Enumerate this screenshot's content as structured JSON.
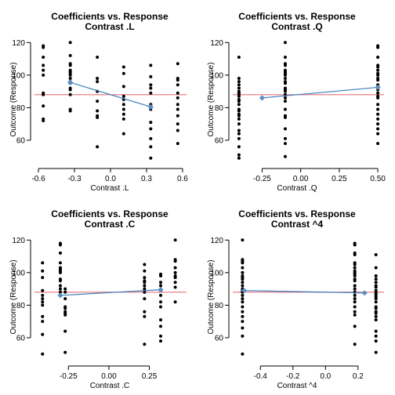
{
  "colors": {
    "points": "#000000",
    "reference_line": "#e8737a",
    "fit_line": "#3b7dbd",
    "fit_markers": "#5b8fc4"
  },
  "chart_data": [
    {
      "type": "scatter",
      "title": "Coefficients vs. Response",
      "subtitle": "Contrast .L",
      "xlabel": "Contrast .L",
      "ylabel": "Outcome (Response)",
      "xlim": [
        -0.62,
        0.62
      ],
      "ylim": [
        46,
        124
      ],
      "xticks": [
        -0.6,
        -0.3,
        0.0,
        0.3,
        0.6
      ],
      "xtick_labels": [
        "-0.6",
        "-0.3",
        "0.0",
        "0.3",
        "0.6"
      ],
      "yticks": [
        60,
        80,
        100,
        120
      ],
      "ytick_labels": [
        "60",
        "80",
        "100",
        "120"
      ],
      "reference_y": 88,
      "fit_line": {
        "x": [
          -0.335,
          0.335
        ],
        "y": [
          95.5,
          80.5
        ]
      },
      "points": {
        "x": [
          -0.56,
          -0.56,
          -0.56,
          -0.56,
          -0.56,
          -0.56,
          -0.56,
          -0.56,
          -0.56,
          -0.56,
          -0.56,
          -0.335,
          -0.335,
          -0.335,
          -0.335,
          -0.335,
          -0.335,
          -0.335,
          -0.335,
          -0.335,
          -0.335,
          -0.335,
          -0.335,
          -0.335,
          -0.335,
          -0.335,
          -0.335,
          -0.11,
          -0.11,
          -0.11,
          -0.11,
          -0.11,
          -0.11,
          -0.11,
          -0.11,
          -0.11,
          0.11,
          0.11,
          0.11,
          0.11,
          0.11,
          0.11,
          0.11,
          0.11,
          0.11,
          0.11,
          0.335,
          0.335,
          0.335,
          0.335,
          0.335,
          0.335,
          0.335,
          0.335,
          0.335,
          0.335,
          0.335,
          0.335,
          0.56,
          0.56,
          0.56,
          0.56,
          0.56,
          0.56,
          0.56,
          0.56,
          0.56,
          0.56,
          0.56,
          0.56
        ],
        "y": [
          118,
          117,
          111,
          106,
          103,
          100,
          89,
          88,
          81,
          73,
          72,
          120,
          112,
          107,
          106,
          103,
          102,
          101,
          100,
          98,
          96,
          95,
          92,
          91,
          88,
          79,
          78,
          111,
          98,
          96,
          90,
          84,
          78,
          75,
          74,
          56,
          105,
          101,
          93,
          87,
          85,
          82,
          79,
          76,
          73,
          64,
          106,
          99,
          94,
          92,
          89,
          82,
          79,
          71,
          67,
          61,
          56,
          49,
          107,
          98,
          97,
          94,
          89,
          86,
          82,
          79,
          75,
          70,
          66,
          58
        ]
      }
    },
    {
      "type": "scatter",
      "title": "Coefficients vs. Response",
      "subtitle": "Contrast .Q",
      "xlabel": "Contrast .Q",
      "ylabel": "Outcome (Response)",
      "xlim": [
        -0.43,
        0.53
      ],
      "ylim": [
        46,
        124
      ],
      "xticks": [
        -0.25,
        0.0,
        0.25,
        0.5
      ],
      "xtick_labels": [
        "-0.25",
        "0.00",
        "0.25",
        "0.50"
      ],
      "yticks": [
        60,
        80,
        100,
        120
      ],
      "ytick_labels": [
        "60",
        "80",
        "100",
        "120"
      ],
      "reference_y": 88,
      "fit_line": {
        "x": [
          -0.25,
          0.5
        ],
        "y": [
          86,
          92.5
        ]
      },
      "points": {
        "x": [
          -0.4,
          -0.4,
          -0.4,
          -0.4,
          -0.4,
          -0.4,
          -0.4,
          -0.4,
          -0.4,
          -0.4,
          -0.4,
          -0.4,
          -0.4,
          -0.4,
          -0.4,
          -0.4,
          -0.4,
          -0.4,
          -0.4,
          -0.4,
          -0.4,
          -0.4,
          -0.4,
          -0.4,
          -0.1,
          -0.1,
          -0.1,
          -0.1,
          -0.1,
          -0.1,
          -0.1,
          -0.1,
          -0.1,
          -0.1,
          -0.1,
          -0.1,
          -0.1,
          -0.1,
          -0.1,
          -0.1,
          -0.1,
          -0.1,
          -0.1,
          -0.1,
          -0.1,
          -0.1,
          -0.1,
          -0.1,
          0.5,
          0.5,
          0.5,
          0.5,
          0.5,
          0.5,
          0.5,
          0.5,
          0.5,
          0.5,
          0.5,
          0.5,
          0.5,
          0.5,
          0.5,
          0.5,
          0.5,
          0.5,
          0.5,
          0.5,
          0.5,
          0.5,
          0.5,
          0.5
        ],
        "y": [
          111,
          98,
          96,
          94,
          92,
          90,
          89,
          88,
          87,
          85,
          84,
          82,
          79,
          78,
          76,
          75,
          73,
          70,
          66,
          64,
          61,
          56,
          51,
          49,
          120,
          111,
          107,
          106,
          103,
          102,
          101,
          100,
          98,
          96,
          95,
          92,
          91,
          90,
          88,
          86,
          84,
          79,
          75,
          74,
          67,
          61,
          58,
          50,
          118,
          117,
          111,
          106,
          105,
          103,
          101,
          100,
          98,
          97,
          94,
          93,
          91,
          89,
          87,
          86,
          82,
          79,
          76,
          73,
          70,
          67,
          64,
          58
        ]
      }
    },
    {
      "type": "scatter",
      "title": "Coefficients vs. Response",
      "subtitle": "Contrast .C",
      "xlabel": "Contrast .C",
      "ylabel": "Outcome (Response)",
      "xlim": [
        -0.45,
        0.47
      ],
      "ylim": [
        46,
        124
      ],
      "xticks": [
        -0.25,
        0.0,
        0.25
      ],
      "xtick_labels": [
        "-0.25",
        "0.00",
        "0.25"
      ],
      "yticks": [
        60,
        80,
        100,
        120
      ],
      "ytick_labels": [
        "60",
        "80",
        "100",
        "120"
      ],
      "reference_y": 88,
      "fit_line": {
        "x": [
          -0.3,
          0.32
        ],
        "y": [
          86,
          89.5
        ]
      },
      "points": {
        "x": [
          -0.41,
          -0.41,
          -0.41,
          -0.41,
          -0.41,
          -0.41,
          -0.41,
          -0.41,
          -0.41,
          -0.41,
          -0.41,
          -0.41,
          -0.3,
          -0.3,
          -0.3,
          -0.3,
          -0.3,
          -0.3,
          -0.3,
          -0.3,
          -0.3,
          -0.3,
          -0.3,
          -0.3,
          -0.3,
          -0.27,
          -0.27,
          -0.27,
          -0.27,
          -0.27,
          -0.27,
          -0.27,
          -0.27,
          -0.27,
          -0.27,
          0.22,
          0.22,
          0.22,
          0.22,
          0.22,
          0.22,
          0.22,
          0.22,
          0.22,
          0.22,
          0.22,
          0.22,
          0.32,
          0.32,
          0.32,
          0.32,
          0.32,
          0.32,
          0.32,
          0.32,
          0.32,
          0.32,
          0.32,
          0.32,
          0.41,
          0.41,
          0.41,
          0.41,
          0.41,
          0.41,
          0.41,
          0.41,
          0.41,
          0.41
        ],
        "y": [
          106,
          101,
          97,
          89,
          86,
          84,
          82,
          80,
          73,
          70,
          62,
          50,
          118,
          117,
          112,
          106,
          103,
          102,
          101,
          100,
          96,
          95,
          92,
          90,
          88,
          90,
          88,
          84,
          79,
          78,
          76,
          75,
          74,
          64,
          51,
          105,
          101,
          97,
          95,
          94,
          92,
          90,
          88,
          84,
          76,
          73,
          56,
          99,
          98,
          94,
          92,
          89,
          86,
          82,
          79,
          71,
          67,
          61,
          58,
          120,
          108,
          107,
          103,
          100,
          98,
          97,
          94,
          91,
          82
        ]
      }
    },
    {
      "type": "scatter",
      "title": "Coefficients vs. Response",
      "subtitle": "Contrast ^4",
      "xlabel": "Contrast ^4",
      "ylabel": "Outcome (Response)",
      "xlim": [
        -0.56,
        0.35
      ],
      "ylim": [
        46,
        124
      ],
      "xticks": [
        -0.4,
        -0.2,
        0.0,
        0.2
      ],
      "xtick_labels": [
        "-0.4",
        "-0.2",
        "0.0",
        "0.2"
      ],
      "yticks": [
        60,
        80,
        100,
        120
      ],
      "ytick_labels": [
        "60",
        "80",
        "100",
        "120"
      ],
      "reference_y": 88,
      "fit_line": {
        "x": [
          -0.5,
          0.24
        ],
        "y": [
          89,
          87.5
        ]
      },
      "points": {
        "x": [
          -0.51,
          -0.51,
          -0.51,
          -0.51,
          -0.51,
          -0.51,
          -0.51,
          -0.51,
          -0.51,
          -0.51,
          -0.51,
          -0.51,
          -0.51,
          -0.51,
          -0.51,
          -0.51,
          -0.51,
          -0.51,
          -0.51,
          -0.51,
          -0.51,
          -0.51,
          -0.51,
          -0.51,
          0.18,
          0.18,
          0.18,
          0.18,
          0.18,
          0.18,
          0.18,
          0.18,
          0.18,
          0.18,
          0.18,
          0.18,
          0.18,
          0.18,
          0.18,
          0.18,
          0.18,
          0.18,
          0.18,
          0.18,
          0.18,
          0.18,
          0.18,
          0.18,
          0.31,
          0.31,
          0.31,
          0.31,
          0.31,
          0.31,
          0.31,
          0.31,
          0.31,
          0.31,
          0.31,
          0.31,
          0.31,
          0.31,
          0.31,
          0.31,
          0.31,
          0.31,
          0.31,
          0.31,
          0.31,
          0.31,
          0.31,
          0.31
        ],
        "y": [
          120,
          108,
          107,
          106,
          103,
          100,
          98,
          97,
          96,
          94,
          92,
          90,
          89,
          88,
          86,
          84,
          82,
          79,
          76,
          73,
          70,
          66,
          61,
          50,
          118,
          117,
          112,
          111,
          106,
          105,
          103,
          101,
          100,
          99,
          98,
          96,
          95,
          92,
          90,
          88,
          86,
          84,
          82,
          79,
          76,
          74,
          67,
          56,
          111,
          103,
          98,
          96,
          94,
          92,
          91,
          89,
          88,
          87,
          86,
          85,
          84,
          82,
          79,
          78,
          76,
          75,
          73,
          71,
          64,
          61,
          58,
          51
        ]
      }
    }
  ]
}
